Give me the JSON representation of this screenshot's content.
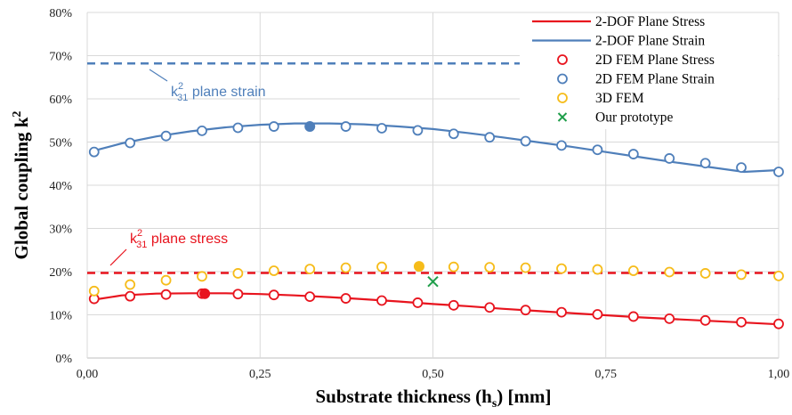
{
  "chart_data": {
    "type": "line",
    "xlabel": "Substrate thickness (h",
    "xlabel_sub": "s",
    "xlabel_suffix": ") [mm]",
    "ylabel": "Global coupling k",
    "ylabel_sup": "2",
    "xlim": [
      0,
      1
    ],
    "ylim": [
      0,
      0.8
    ],
    "x_ticks": [
      0,
      0.25,
      0.5,
      0.75,
      1.0
    ],
    "x_tick_labels": [
      "0,00",
      "0,25",
      "0,50",
      "0,75",
      "1,00"
    ],
    "y_ticks": [
      0,
      0.1,
      0.2,
      0.3,
      0.4,
      0.5,
      0.6,
      0.7,
      0.8
    ],
    "y_tick_labels": [
      "0%",
      "10%",
      "20%",
      "30%",
      "40%",
      "50%",
      "60%",
      "70%",
      "80%"
    ],
    "grid": true,
    "legend_position": "top-right",
    "colors": {
      "stress": "#e8141e",
      "strain": "#4f7fba",
      "fem3d": "#f6bc1a",
      "prototype": "#1f9e4a"
    },
    "series": [
      {
        "name": "2-DOF Plane Stress",
        "kind": "line",
        "color": "#e8141e",
        "x": [
          0.01,
          0.05,
          0.1,
          0.15,
          0.2,
          0.25,
          0.3,
          0.35,
          0.4,
          0.45,
          0.5,
          0.55,
          0.6,
          0.65,
          0.7,
          0.75,
          0.8,
          0.85,
          0.9,
          0.95,
          1.0
        ],
        "y": [
          0.135,
          0.145,
          0.149,
          0.15,
          0.15,
          0.148,
          0.145,
          0.141,
          0.136,
          0.131,
          0.125,
          0.12,
          0.114,
          0.109,
          0.104,
          0.099,
          0.094,
          0.09,
          0.086,
          0.082,
          0.078
        ]
      },
      {
        "name": "2-DOF Plane Strain",
        "kind": "line",
        "color": "#4f7fba",
        "x": [
          0.01,
          0.05,
          0.1,
          0.15,
          0.2,
          0.25,
          0.3,
          0.35,
          0.4,
          0.45,
          0.5,
          0.55,
          0.6,
          0.65,
          0.7,
          0.75,
          0.8,
          0.85,
          0.9,
          0.95,
          1.0
        ],
        "y": [
          0.48,
          0.497,
          0.513,
          0.525,
          0.534,
          0.54,
          0.543,
          0.543,
          0.541,
          0.536,
          0.53,
          0.521,
          0.511,
          0.5,
          0.489,
          0.477,
          0.465,
          0.453,
          0.442,
          0.431,
          0.435
        ]
      },
      {
        "name": "2D FEM Plane Stress",
        "kind": "markers",
        "color": "#e8141e",
        "x": [
          0.01,
          0.062,
          0.114,
          0.166,
          0.218,
          0.27,
          0.322,
          0.374,
          0.426,
          0.478,
          0.53,
          0.582,
          0.634,
          0.686,
          0.738,
          0.79,
          0.842,
          0.894,
          0.946,
          1.0
        ],
        "y": [
          0.137,
          0.143,
          0.147,
          0.149,
          0.148,
          0.146,
          0.142,
          0.138,
          0.133,
          0.128,
          0.122,
          0.117,
          0.111,
          0.106,
          0.101,
          0.096,
          0.091,
          0.087,
          0.083,
          0.079
        ],
        "filled_x": 0.17,
        "filled_y": 0.149
      },
      {
        "name": "2D FEM Plane Strain",
        "kind": "markers",
        "color": "#4f7fba",
        "x": [
          0.01,
          0.062,
          0.114,
          0.166,
          0.218,
          0.27,
          0.374,
          0.426,
          0.478,
          0.53,
          0.582,
          0.634,
          0.686,
          0.738,
          0.79,
          0.842,
          0.894,
          0.946,
          1.0
        ],
        "y": [
          0.477,
          0.498,
          0.514,
          0.526,
          0.533,
          0.536,
          0.536,
          0.532,
          0.527,
          0.519,
          0.511,
          0.502,
          0.492,
          0.482,
          0.472,
          0.462,
          0.451,
          0.441,
          0.431
        ],
        "filled_x": 0.322,
        "filled_y": 0.536
      },
      {
        "name": "3D FEM",
        "kind": "markers",
        "color": "#f6bc1a",
        "x": [
          0.01,
          0.062,
          0.114,
          0.166,
          0.218,
          0.27,
          0.322,
          0.374,
          0.426,
          0.53,
          0.582,
          0.634,
          0.686,
          0.738,
          0.79,
          0.842,
          0.894,
          0.946,
          1.0
        ],
        "y": [
          0.155,
          0.17,
          0.18,
          0.189,
          0.196,
          0.202,
          0.206,
          0.209,
          0.211,
          0.211,
          0.21,
          0.209,
          0.207,
          0.205,
          0.202,
          0.199,
          0.196,
          0.193,
          0.19
        ],
        "filled_x": 0.48,
        "filled_y": 0.212
      },
      {
        "name": "Our prototype",
        "kind": "cross",
        "color": "#1f9e4a",
        "x": [
          0.5
        ],
        "y": [
          0.177
        ]
      }
    ],
    "reference_lines": [
      {
        "y": 0.682,
        "color": "#4f7fba",
        "label_main": "k",
        "label_sub": "31",
        "label_sup": "2",
        "label_rest": " plane strain"
      },
      {
        "y": 0.197,
        "color": "#e8141e",
        "label_main": "k",
        "label_sub": "31",
        "label_sup": "2",
        "label_rest": " plane stress"
      }
    ]
  }
}
